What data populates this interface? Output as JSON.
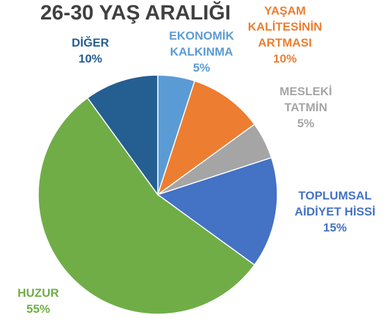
{
  "chart_data": {
    "type": "pie",
    "title": "26-30 YAŞ ARALIĞI",
    "categories": [
      "EKONOMİK KALKINMA",
      "YAŞAM KALİTESİNİN ARTMASI",
      "MESLEKİ TATMİN",
      "TOPLUMSAL AİDİYET HİSSİ",
      "HUZUR",
      "DİĞER"
    ],
    "values": [
      5,
      10,
      5,
      15,
      55,
      10
    ],
    "value_labels": [
      "5%",
      "10%",
      "5%",
      "15%",
      "55%",
      "10%"
    ],
    "colors": [
      "#5b9bd5",
      "#ed7d31",
      "#a5a5a5",
      "#4472c4",
      "#70ad47",
      "#255e91"
    ]
  }
}
